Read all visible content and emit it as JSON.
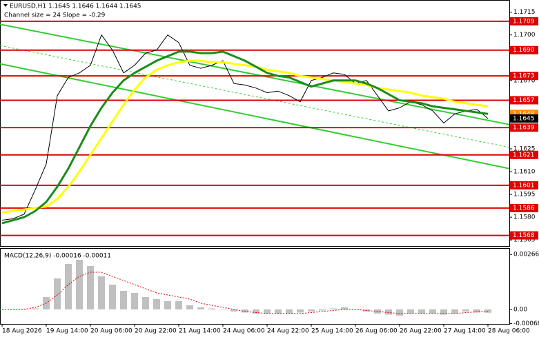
{
  "chart_data": [
    {
      "type": "line",
      "title": "EURUSD,H1  1.1645 1.1646 1.1644 1.1645",
      "subtitle": "Channel size = 24 Slope = -0.29",
      "categories": [
        "18 Aug 2026",
        null,
        null,
        null,
        "19 Aug 14:00",
        null,
        null,
        null,
        "20 Aug 06:00",
        null,
        null,
        null,
        "20 Aug 22:00",
        null,
        null,
        null,
        "21 Aug 14:00",
        null,
        null,
        null,
        "24 Aug 06:00",
        null,
        null,
        null,
        "24 Aug 22:00",
        null,
        null,
        null,
        "25 Aug 14:00",
        null,
        null,
        null,
        "26 Aug 06:00",
        null,
        null,
        null,
        "26 Aug 22:00",
        null,
        null,
        null,
        "27 Aug 14:00",
        null,
        null,
        null,
        "28 Aug 06:00"
      ],
      "series": [
        {
          "color": "#000000",
          "values": [
            1.1578,
            1.1579,
            1.1582,
            1.1598,
            1.1615,
            1.166,
            1.1672,
            1.1675,
            1.168,
            1.17,
            1.169,
            1.1675,
            1.168,
            1.1688,
            1.169,
            1.17,
            1.1695,
            1.168,
            1.1678,
            1.168,
            1.1683,
            1.1668,
            1.1667,
            1.1665,
            1.1662,
            1.1663,
            1.166,
            1.1656,
            1.167,
            1.1672,
            1.1675,
            1.1674,
            1.1668,
            1.167,
            1.166,
            1.165,
            1.1652,
            1.1656,
            1.1654,
            1.165,
            1.1642,
            1.1648,
            1.165,
            1.1651,
            1.1645
          ]
        },
        {
          "color": "#ffff00",
          "values": [
            1.1583,
            1.1584,
            1.1585,
            1.1586,
            1.1587,
            1.1592,
            1.16,
            1.161,
            1.1621,
            1.1632,
            1.1643,
            1.1654,
            1.1664,
            1.1672,
            1.1677,
            1.168,
            1.1682,
            1.1683,
            1.1683,
            1.1682,
            1.1682,
            1.1681,
            1.168,
            1.1679,
            1.1677,
            1.1676,
            1.1675,
            1.1673,
            1.1672,
            1.1671,
            1.167,
            1.1669,
            1.1668,
            1.1667,
            1.1665,
            1.1664,
            1.1663,
            1.1662,
            1.166,
            1.1659,
            1.1658,
            1.1656,
            1.1655,
            1.1654,
            1.1653
          ]
        },
        {
          "color": "#1a8c1a",
          "values": [
            1.1576,
            1.1578,
            1.158,
            1.1584,
            1.159,
            1.16,
            1.1612,
            1.1626,
            1.164,
            1.1652,
            1.1662,
            1.167,
            1.1675,
            1.1679,
            1.1683,
            1.1686,
            1.1689,
            1.1689,
            1.1688,
            1.1688,
            1.1689,
            1.1686,
            1.1683,
            1.1679,
            1.1675,
            1.1673,
            1.1672,
            1.1669,
            1.1666,
            1.1668,
            1.167,
            1.167,
            1.167,
            1.1668,
            1.1665,
            1.1661,
            1.1657,
            1.1656,
            1.1655,
            1.1653,
            1.1652,
            1.1651,
            1.165,
            1.1649,
            1.1648
          ]
        }
      ],
      "channel": {
        "color": "#32cd32",
        "upper": [
          1.1707,
          1.1641
        ],
        "middle": [
          1.1693,
          1.1626
        ],
        "lower": [
          1.1681,
          1.1612
        ]
      },
      "levels": {
        "color": "#e00000",
        "items": [
          {
            "value": 1.1709,
            "label": "1.1709"
          },
          {
            "value": 1.169,
            "label": "1.1690"
          },
          {
            "value": 1.1673,
            "label": "1.1673"
          },
          {
            "value": 1.1657,
            "label": "1.1657"
          },
          {
            "value": 1.1639,
            "label": "1.1639"
          },
          {
            "value": 1.1621,
            "label": "1.1621"
          },
          {
            "value": 1.1601,
            "label": "1.1601"
          },
          {
            "value": 1.1586,
            "label": "1.1586"
          },
          {
            "value": 1.1568,
            "label": "1.1568"
          }
        ]
      },
      "price_labels": [
        {
          "value": 1.1648,
          "label": "1.1648",
          "color": "#ff8c00"
        },
        {
          "value": 1.1645,
          "label": "1.1645",
          "color": "#000000"
        }
      ],
      "ylim": [
        1.1561,
        1.1723
      ],
      "yticks": [
        {
          "value": 1.1715,
          "label": "1.1715"
        },
        {
          "value": 1.17,
          "label": "1.1700"
        },
        {
          "value": 1.167,
          "label": "1.1670"
        },
        {
          "value": 1.1625,
          "label": "1.1625"
        },
        {
          "value": 1.161,
          "label": "1.1610"
        },
        {
          "value": 1.1595,
          "label": "1.1595"
        },
        {
          "value": 1.158,
          "label": "1.1580"
        },
        {
          "value": 1.1565,
          "label": "1.1565"
        }
      ]
    },
    {
      "type": "bar",
      "title": "MACD(12,26,9) -0.00016 -0.00011",
      "color": "#c0c0c0",
      "values": [
        0,
        1e-05,
        2e-05,
        5e-05,
        0.0006,
        0.0015,
        0.0022,
        0.0024,
        0.0021,
        0.0016,
        0.0012,
        0.0009,
        0.0008,
        0.0006,
        0.0005,
        0.0004,
        0.0004,
        0.0002,
        0.0001,
        5e-05,
        0,
        -0.0001,
        -0.00015,
        -0.0002,
        -0.0002,
        -0.0002,
        -0.0002,
        -0.00015,
        -0.0001,
        -5e-05,
        5e-05,
        0.0001,
        0,
        -0.0001,
        -0.0002,
        -0.00025,
        -0.0003,
        -0.0002,
        -0.0002,
        -0.0002,
        -0.00025,
        -0.0002,
        -0.0001,
        -0.00015,
        -0.00016
      ],
      "series": [
        {
          "color": "#e00000",
          "values": [
            0,
            0,
            0,
            0.0001,
            0.0003,
            0.0007,
            0.0012,
            0.0016,
            0.0018,
            0.0018,
            0.0016,
            0.0014,
            0.0012,
            0.001,
            0.0008,
            0.0007,
            0.0006,
            0.0005,
            0.0003,
            0.0002,
            0.0001,
            0,
            -0.0001,
            -0.00015,
            -0.0002,
            -0.0002,
            -0.0002,
            -0.0002,
            -0.00015,
            -0.0001,
            -5e-05,
            0,
            0,
            -5e-05,
            -0.0001,
            -0.00015,
            -0.0002,
            -0.0002,
            -0.0002,
            -0.0002,
            -0.0002,
            -0.0002,
            -0.00015,
            -0.00012,
            -0.00011
          ]
        }
      ],
      "ylim": [
        -0.0007,
        0.0029
      ],
      "yticks": [
        {
          "value": 0.00266,
          "label": "0.00266"
        },
        {
          "value": 0,
          "label": "0.00"
        },
        {
          "value": -0.00068,
          "label": "-0.00068"
        }
      ]
    }
  ]
}
